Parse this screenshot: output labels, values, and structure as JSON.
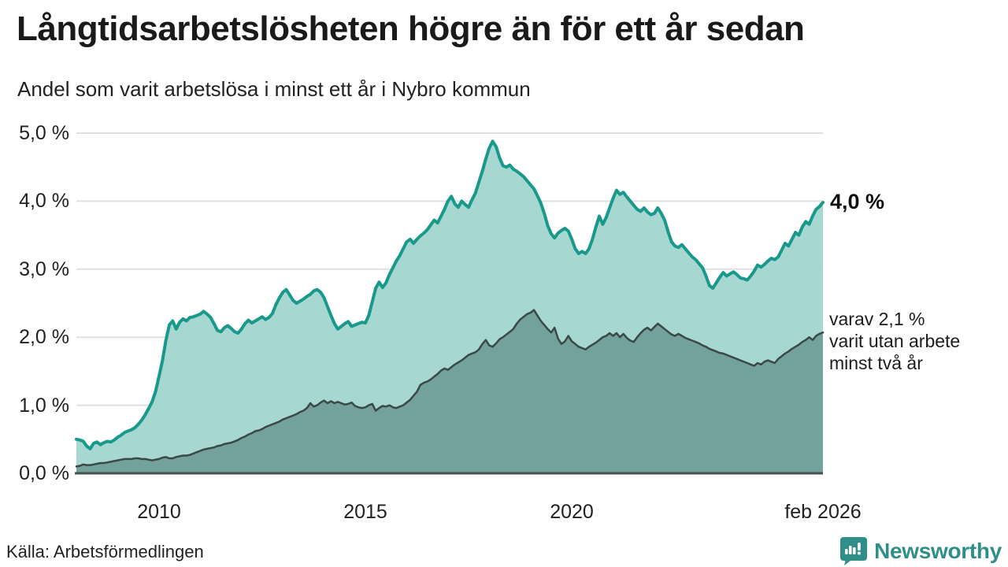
{
  "header": {
    "title": "Långtidsarbetslösheten högre än för ett år sedan",
    "subtitle": "Andel som varit arbetslösa i minst ett år i Nybro kommun"
  },
  "footer": {
    "source": "Källa: Arbetsförmedlingen",
    "brand_name": "Newsworthy",
    "brand_color": "#2f8f88"
  },
  "chart_data": {
    "type": "area",
    "title": "Långtidsarbetslösheten högre än för ett år sedan",
    "subtitle": "Andel som varit arbetslösa i minst ett år i Nybro kommun",
    "unit": "%",
    "x_domain": [
      2008.0,
      2026.0833
    ],
    "ylim": [
      0,
      5
    ],
    "grid": true,
    "colors": {
      "grid": "#e0e0e4",
      "axis": "#44524f",
      "text": "#212121"
    },
    "yticks": [
      {
        "v": 0,
        "label": "0,0 %"
      },
      {
        "v": 1,
        "label": "1,0 %"
      },
      {
        "v": 2,
        "label": "2,0 %"
      },
      {
        "v": 3,
        "label": "3,0 %"
      },
      {
        "v": 4,
        "label": "4,0 %"
      },
      {
        "v": 5,
        "label": "5,0 %"
      }
    ],
    "xticks": [
      {
        "v": 2010,
        "label": "2010"
      },
      {
        "v": 2015,
        "label": "2015"
      },
      {
        "v": 2020,
        "label": "2020"
      },
      {
        "v": 2026.0833,
        "label": "feb 2026"
      }
    ],
    "annotations": {
      "top_end_label": "4,0 %",
      "bottom_note_lines": [
        "varav 2,1 %",
        "varit utan arbete",
        "minst två år"
      ]
    },
    "series": [
      {
        "name": "Arbetslösa minst ett år",
        "color": "#18998b",
        "fill": "#a0d4cd",
        "line_width": 4,
        "x_start": 2008.0,
        "x_step": 0.0833333,
        "values": [
          0.5,
          0.49,
          0.47,
          0.4,
          0.36,
          0.44,
          0.46,
          0.42,
          0.45,
          0.47,
          0.46,
          0.49,
          0.53,
          0.56,
          0.6,
          0.62,
          0.64,
          0.67,
          0.72,
          0.78,
          0.86,
          0.95,
          1.05,
          1.2,
          1.42,
          1.65,
          1.95,
          2.18,
          2.24,
          2.12,
          2.22,
          2.27,
          2.24,
          2.29,
          2.3,
          2.32,
          2.34,
          2.38,
          2.34,
          2.29,
          2.2,
          2.1,
          2.08,
          2.14,
          2.17,
          2.13,
          2.08,
          2.06,
          2.12,
          2.2,
          2.25,
          2.21,
          2.24,
          2.27,
          2.3,
          2.26,
          2.29,
          2.35,
          2.48,
          2.58,
          2.66,
          2.7,
          2.62,
          2.54,
          2.5,
          2.53,
          2.56,
          2.6,
          2.63,
          2.68,
          2.7,
          2.66,
          2.58,
          2.45,
          2.32,
          2.2,
          2.12,
          2.16,
          2.2,
          2.23,
          2.16,
          2.18,
          2.2,
          2.22,
          2.21,
          2.32,
          2.52,
          2.72,
          2.81,
          2.73,
          2.8,
          2.92,
          3.02,
          3.12,
          3.2,
          3.3,
          3.4,
          3.44,
          3.38,
          3.44,
          3.49,
          3.53,
          3.58,
          3.65,
          3.72,
          3.68,
          3.78,
          3.88,
          4.0,
          4.07,
          3.96,
          3.91,
          4.0,
          3.95,
          3.91,
          4.02,
          4.12,
          4.28,
          4.44,
          4.62,
          4.78,
          4.88,
          4.8,
          4.64,
          4.52,
          4.5,
          4.53,
          4.47,
          4.44,
          4.4,
          4.36,
          4.3,
          4.24,
          4.18,
          4.08,
          3.97,
          3.82,
          3.64,
          3.52,
          3.46,
          3.53,
          3.57,
          3.6,
          3.56,
          3.44,
          3.3,
          3.23,
          3.26,
          3.23,
          3.3,
          3.44,
          3.62,
          3.78,
          3.66,
          3.76,
          3.9,
          4.04,
          4.16,
          4.1,
          4.13,
          4.06,
          4.0,
          3.94,
          3.88,
          3.85,
          3.9,
          3.84,
          3.8,
          3.82,
          3.9,
          3.82,
          3.72,
          3.55,
          3.4,
          3.34,
          3.32,
          3.36,
          3.3,
          3.24,
          3.18,
          3.14,
          3.08,
          3.02,
          2.9,
          2.76,
          2.72,
          2.8,
          2.88,
          2.95,
          2.9,
          2.93,
          2.96,
          2.92,
          2.87,
          2.86,
          2.84,
          2.9,
          2.97,
          3.06,
          3.03,
          3.07,
          3.12,
          3.16,
          3.14,
          3.18,
          3.28,
          3.38,
          3.34,
          3.44,
          3.54,
          3.5,
          3.62,
          3.7,
          3.66,
          3.78,
          3.88,
          3.92,
          3.98
        ],
        "end_value": 4.0
      },
      {
        "name": "varav utan arbete minst två år",
        "color": "#3a4846",
        "fill": "#6f9d98",
        "line_width": 2.5,
        "x_start": 2008.0,
        "x_step": 0.0833333,
        "values": [
          0.1,
          0.11,
          0.13,
          0.12,
          0.12,
          0.13,
          0.14,
          0.15,
          0.15,
          0.16,
          0.17,
          0.18,
          0.19,
          0.2,
          0.21,
          0.21,
          0.21,
          0.22,
          0.22,
          0.21,
          0.21,
          0.2,
          0.19,
          0.2,
          0.21,
          0.23,
          0.24,
          0.22,
          0.22,
          0.24,
          0.25,
          0.26,
          0.26,
          0.27,
          0.29,
          0.31,
          0.33,
          0.35,
          0.36,
          0.37,
          0.38,
          0.4,
          0.41,
          0.43,
          0.44,
          0.45,
          0.47,
          0.49,
          0.52,
          0.54,
          0.57,
          0.59,
          0.62,
          0.63,
          0.65,
          0.68,
          0.7,
          0.72,
          0.74,
          0.76,
          0.79,
          0.81,
          0.83,
          0.85,
          0.87,
          0.9,
          0.92,
          0.96,
          1.03,
          0.98,
          1.0,
          1.04,
          1.07,
          1.03,
          1.06,
          1.03,
          1.05,
          1.03,
          1.01,
          1.02,
          1.04,
          0.99,
          0.97,
          0.96,
          0.97,
          1.0,
          1.02,
          0.92,
          0.96,
          0.99,
          0.98,
          1.0,
          0.97,
          0.96,
          0.98,
          1.0,
          1.04,
          1.08,
          1.14,
          1.2,
          1.3,
          1.33,
          1.35,
          1.38,
          1.42,
          1.46,
          1.51,
          1.54,
          1.52,
          1.56,
          1.6,
          1.63,
          1.66,
          1.7,
          1.74,
          1.76,
          1.78,
          1.82,
          1.9,
          1.96,
          1.88,
          1.86,
          1.91,
          1.97,
          2.0,
          2.04,
          2.08,
          2.12,
          2.2,
          2.26,
          2.3,
          2.34,
          2.36,
          2.4,
          2.32,
          2.24,
          2.18,
          2.12,
          2.07,
          2.14,
          1.98,
          1.9,
          1.94,
          2.02,
          1.94,
          1.9,
          1.86,
          1.84,
          1.82,
          1.86,
          1.89,
          1.92,
          1.96,
          2.0,
          2.02,
          2.06,
          2.02,
          2.06,
          2.0,
          2.05,
          1.99,
          1.95,
          1.93,
          2.0,
          2.06,
          2.11,
          2.14,
          2.1,
          2.15,
          2.2,
          2.16,
          2.12,
          2.08,
          2.04,
          2.02,
          2.05,
          2.02,
          1.99,
          1.97,
          1.95,
          1.93,
          1.91,
          1.88,
          1.86,
          1.83,
          1.81,
          1.79,
          1.77,
          1.76,
          1.74,
          1.72,
          1.7,
          1.68,
          1.66,
          1.64,
          1.62,
          1.6,
          1.58,
          1.62,
          1.6,
          1.64,
          1.66,
          1.64,
          1.62,
          1.68,
          1.72,
          1.76,
          1.79,
          1.83,
          1.86,
          1.89,
          1.93,
          1.96,
          2.0,
          1.96,
          2.02,
          2.05,
          2.07
        ],
        "end_value": 2.1
      }
    ]
  }
}
